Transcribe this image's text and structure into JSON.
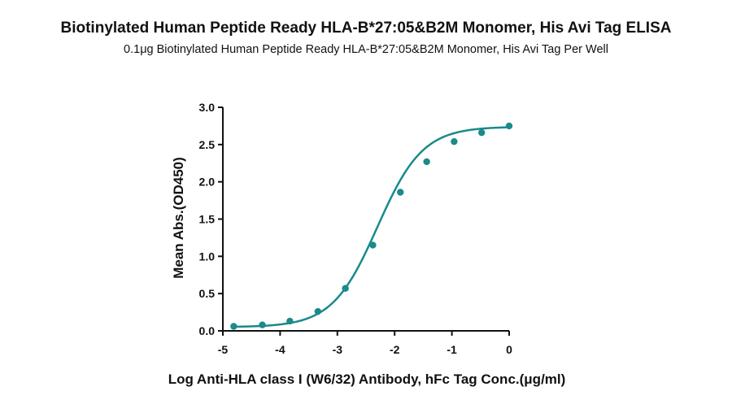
{
  "title": "Biotinylated Human Peptide Ready HLA-B*27:05&B2M Monomer, His Avi Tag ELISA",
  "subtitle": "0.1μg Biotinylated Human Peptide Ready HLA-B*27:05&B2M Monomer, His Avi Tag Per Well",
  "colors": {
    "series": "#1a8a8a",
    "axis": "#111111"
  },
  "chart_data": {
    "type": "scatter",
    "xlabel": "Log Anti-HLA class I (W6/32) Antibody, hFc Tag Conc.(μg/ml)",
    "ylabel": "Mean Abs.(OD450)",
    "xlim": [
      -5,
      0
    ],
    "ylim": [
      0,
      3.0
    ],
    "xticks": [
      "-5",
      "-4",
      "-3",
      "-2",
      "-1",
      "0"
    ],
    "yticks": [
      "0.0",
      "0.5",
      "1.0",
      "1.5",
      "2.0",
      "2.5",
      "3.0"
    ],
    "grid": false,
    "legend": "none",
    "series": [
      {
        "x": [
          -4.81,
          -4.31,
          -3.83,
          -3.34,
          -2.86,
          -2.38,
          -1.9,
          -1.44,
          -0.96,
          -0.48,
          0.0
        ],
        "y": [
          0.06,
          0.08,
          0.13,
          0.26,
          0.57,
          1.15,
          1.86,
          2.27,
          2.54,
          2.66,
          2.75
        ],
        "fit": "4PL sigmoid"
      }
    ],
    "fit_params": {
      "bottom": 0.05,
      "top": 2.74,
      "log_ec50": -2.3,
      "hill": 1.1
    }
  }
}
